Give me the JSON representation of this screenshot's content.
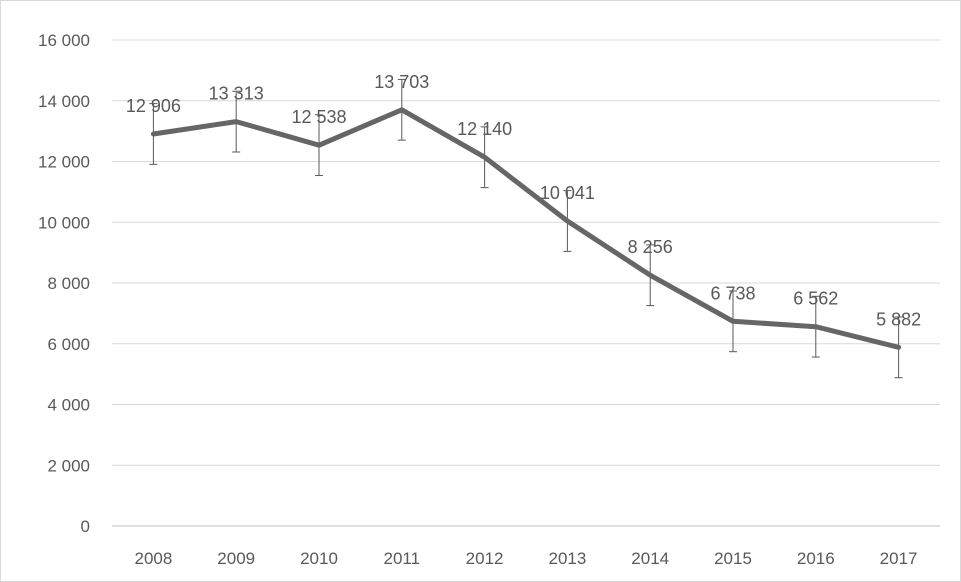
{
  "chart_data": {
    "type": "line",
    "title": "",
    "xlabel": "",
    "ylabel": "",
    "categories": [
      "2008",
      "2009",
      "2010",
      "2011",
      "2012",
      "2013",
      "2014",
      "2015",
      "2016",
      "2017"
    ],
    "series": [
      {
        "values": [
          12906,
          13313,
          12538,
          13703,
          12140,
          10041,
          8256,
          6738,
          6562,
          5882
        ],
        "error_bars": 1000,
        "color": "#666666"
      }
    ],
    "data_labels": [
      "12 906",
      "13 313",
      "12 538",
      "13 703",
      "12 140",
      "10 041",
      "8 256",
      "6 738",
      "6 562",
      "5 882"
    ],
    "ylim": [
      0,
      16000
    ],
    "yticks": [
      0,
      2000,
      4000,
      6000,
      8000,
      10000,
      12000,
      14000,
      16000
    ],
    "ytick_labels": [
      "0",
      "2 000",
      "4 000",
      "6 000",
      "8 000",
      "10 000",
      "12 000",
      "14 000",
      "16 000"
    ],
    "grid": true,
    "legend": "none",
    "colors": {
      "gridline": "#d9d9d9",
      "axis": "#bfbfbf",
      "line": "#666666",
      "error_bar": "#595959",
      "text": "#595959"
    }
  }
}
